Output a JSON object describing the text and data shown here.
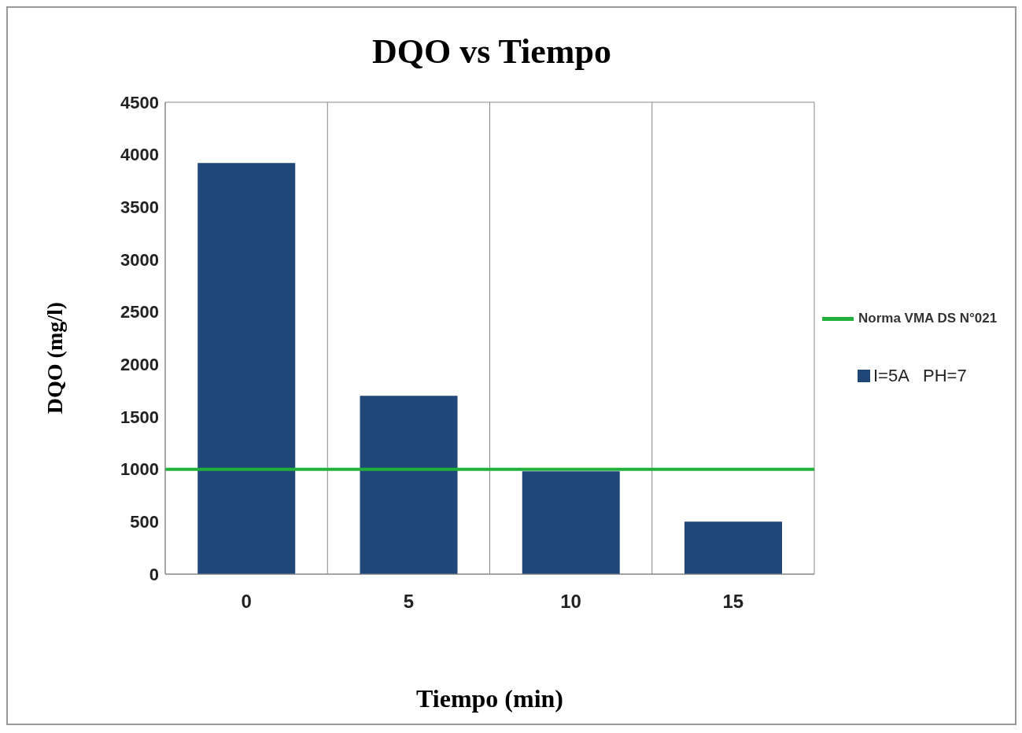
{
  "chart_data": {
    "type": "bar",
    "title": "DQO vs Tiempo",
    "xlabel": "Tiempo (min)",
    "ylabel": "DQO (mg/l)",
    "categories": [
      "0",
      "5",
      "10",
      "15"
    ],
    "series": [
      {
        "name": "I=5A   PH=7",
        "color": "#1f4778",
        "values": [
          3920,
          1700,
          980,
          500
        ]
      }
    ],
    "ylim": [
      0,
      4500
    ],
    "yticks": [
      0,
      500,
      1000,
      1500,
      2000,
      2500,
      3000,
      3500,
      4000,
      4500
    ],
    "ref_lines": [
      {
        "axis": "y",
        "value": 1000,
        "label": "Norma VMA DS N°021",
        "color": "#22b03c"
      }
    ],
    "grid": true,
    "legend": "right"
  }
}
